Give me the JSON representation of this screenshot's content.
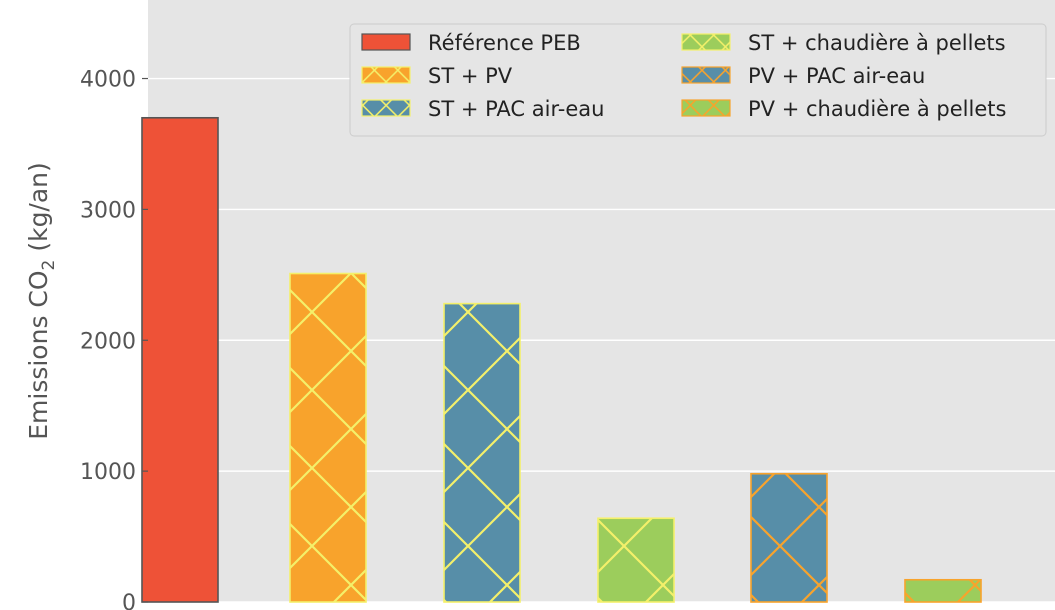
{
  "chart_data": {
    "type": "bar",
    "title": "",
    "xlabel": "",
    "ylabel": {
      "prefix": "Emissions CO",
      "subscript": "2",
      "suffix": " (kg/an)"
    },
    "ylim": [
      0,
      4600
    ],
    "yticks": [
      "0",
      "1000",
      "2000",
      "3000",
      "4000"
    ],
    "grid": true,
    "legend_position": "top-right",
    "categories": [
      "Référence PEB",
      "ST + PV",
      "ST + PAC air-eau",
      "ST + chaudière à pellets",
      "PV + PAC air-eau",
      "PV + chaudière à pellets"
    ],
    "series": [
      {
        "name": "Référence PEB",
        "value": 3700,
        "color": "#ee5237",
        "hatch": "none",
        "hatch_color": "#ee5237",
        "edge": "#555555"
      },
      {
        "name": "ST + PV",
        "value": 2510,
        "color": "#f8a32c",
        "hatch": "crosshatch",
        "hatch_color": "#f4f06a",
        "edge": "#f4f06a"
      },
      {
        "name": "ST + PAC air-eau",
        "value": 2280,
        "color": "#578ea8",
        "hatch": "crosshatch",
        "hatch_color": "#f4f06a",
        "edge": "#f4f06a"
      },
      {
        "name": "ST + chaudière à pellets",
        "value": 640,
        "color": "#9ccd5c",
        "hatch": "crosshatch",
        "hatch_color": "#f4f06a",
        "edge": "#f4f06a"
      },
      {
        "name": "PV + PAC air-eau",
        "value": 980,
        "color": "#578ea8",
        "hatch": "crosshatch",
        "hatch_color": "#f8a32c",
        "edge": "#f8a32c"
      },
      {
        "name": "PV + chaudière à pellets",
        "value": 170,
        "color": "#9ccd5c",
        "hatch": "crosshatch",
        "hatch_color": "#f8a32c",
        "edge": "#f8a32c"
      }
    ]
  }
}
